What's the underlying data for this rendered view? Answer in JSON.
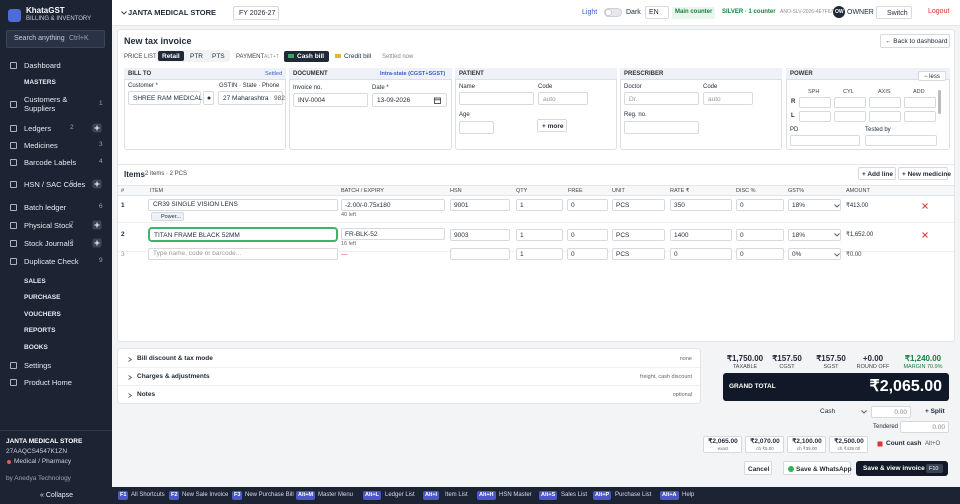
{
  "topbar": {
    "store": "JANTA MEDICAL STORE",
    "fy": "FY 2026-27",
    "light": "Light",
    "dark": "Dark",
    "lang": "EN",
    "counter": "Main counter",
    "plan": "SILVER · 1 counter",
    "license": "ANO-SLV-2026-4E7F67",
    "avatar": "OW",
    "role": "OWNER",
    "switch": "Switch",
    "logout": "Logout"
  },
  "sidebar": {
    "brand": "KhataGST",
    "tagline": "BILLING & INVENTORY",
    "search": "Search anything",
    "search_key": "Ctrl+K",
    "nav": [
      {
        "label": "Dashboard"
      },
      {
        "section": "MASTERS"
      },
      {
        "label": "Customers & Suppliers",
        "count": "1"
      },
      {
        "label": "Ledgers",
        "count": "2",
        "add": true
      },
      {
        "label": "Medicines",
        "count": "3"
      },
      {
        "label": "Barcode Labels",
        "count": "4"
      },
      {
        "label": "HSN / SAC Codes",
        "count": "5",
        "add": true
      },
      {
        "label": "Batch ledger",
        "count": "6"
      },
      {
        "label": "Physical Stock",
        "count": "7",
        "add": true
      },
      {
        "label": "Stock Journals",
        "count": "8",
        "add": true
      },
      {
        "label": "Duplicate Check",
        "count": "9"
      },
      {
        "section": "SALES"
      },
      {
        "section": "PURCHASE"
      },
      {
        "section": "VOUCHERS"
      },
      {
        "section": "REPORTS"
      },
      {
        "section": "BOOKS"
      },
      {
        "label": "Settings"
      },
      {
        "label": "Product Home"
      }
    ],
    "footer": {
      "store": "JANTA MEDICAL STORE",
      "gstin": "27AAQCS4547K1ZN",
      "business": "Medical / Pharmacy",
      "vendor": "by Anedya Technology",
      "collapse": "« Collapse"
    }
  },
  "invoice": {
    "title": "New tax invoice",
    "back": "← Back to dashboard",
    "price_list": "PRICE LIST",
    "price_options": [
      "Retail",
      "PTR",
      "PTS"
    ],
    "payment": "PAYMENT",
    "payment_key": "ALT+T",
    "cash_bill": "Cash bill",
    "credit_bill": "Credit bill",
    "settled": "Settled now",
    "bill_to": {
      "title": "BILL TO",
      "status": "Settled",
      "customer_label": "Customer *",
      "customer": "SHREE RAM MEDICAL",
      "gstin_label": "GSTIN · State · Phone",
      "state": "27 Maharashtra",
      "phone": "982"
    },
    "document": {
      "title": "DOCUMENT",
      "tax_mode": "Intra-state (CGST+SGST)",
      "invoice_label": "Invoice no.",
      "invoice_no": "INV-0004",
      "date_label": "Date *",
      "date": "13-09-2026"
    },
    "patient": {
      "title": "PATIENT",
      "name_label": "Name",
      "code_label": "Code",
      "code_placeholder": "auto",
      "age_label": "Age",
      "more": "+ more"
    },
    "prescriber": {
      "title": "PRESCRIBER",
      "doctor_label": "Doctor",
      "doctor_placeholder": "Dr.",
      "code_label": "Code",
      "code_placeholder": "auto",
      "reg_label": "Reg. no."
    },
    "power": {
      "title": "POWER",
      "toggle": "− less",
      "columns": [
        "SPH",
        "CYL",
        "AXIS",
        "ADD"
      ],
      "eyes": [
        "R",
        "L"
      ],
      "pd": "PD",
      "tested_by": "Tested by"
    }
  },
  "items": {
    "title": "Items",
    "summary": "2 items · 2 PCS",
    "add_line": "+ Add line",
    "new_medicine": "+ New medicine",
    "columns": [
      "#",
      "ITEM",
      "BATCH / EXPIRY",
      "HSN",
      "QTY",
      "FREE",
      "UNIT",
      "RATE ₹",
      "DISC %",
      "GST%",
      "AMOUNT"
    ],
    "rows": [
      {
        "no": "1",
        "item": "CR39 SINGLE VISION LENS",
        "item_sub": "Power...",
        "batch": "-2.00/-0.75x180",
        "stock": "40 left",
        "hsn": "9001",
        "qty": "1",
        "free": "0",
        "unit": "PCS",
        "rate": "350",
        "disc": "0",
        "gst": "18%",
        "amount": "₹413.00"
      },
      {
        "no": "2",
        "item": "TITAN FRAME BLACK 52MM",
        "batch": "FR-BLK-52",
        "stock": "16 left",
        "hsn": "9003",
        "qty": "1",
        "free": "0",
        "unit": "PCS",
        "rate": "1400",
        "disc": "0",
        "gst": "18%",
        "amount": "₹1,652.00"
      },
      {
        "no": "3",
        "item": "Type name, code or barcode...",
        "batch": "—",
        "qty": "1",
        "free": "0",
        "unit": "PCS",
        "rate": "0",
        "disc": "0",
        "gst": "0%",
        "amount": "₹0.00"
      }
    ]
  },
  "adjustments": [
    {
      "label": "Bill discount & tax mode",
      "hint": "none"
    },
    {
      "label": "Charges & adjustments",
      "hint": "freight, cash discount"
    },
    {
      "label": "Notes",
      "hint": "optional"
    }
  ],
  "totals": {
    "figures": [
      {
        "value": "₹1,750.00",
        "label": "TAXABLE"
      },
      {
        "value": "₹157.50",
        "label": "CGST"
      },
      {
        "value": "₹157.50",
        "label": "SGST"
      },
      {
        "value": "+0.00",
        "label": "ROUND OFF"
      },
      {
        "value": "₹1,240.00",
        "label": "MARGIN 70.9%"
      }
    ],
    "grand_label": "GRAND TOTAL",
    "grand": "₹2,065.00",
    "mode": "Cash",
    "amount": "0.00",
    "split": "+ Split",
    "tendered_label": "Tendered",
    "tendered": "0.00",
    "quick": [
      {
        "amount": "₹2,065.00",
        "note": "exact"
      },
      {
        "amount": "₹2,070.00",
        "note": "ch ₹5.00"
      },
      {
        "amount": "₹2,100.00",
        "note": "ch ₹35.00"
      },
      {
        "amount": "₹2,500.00",
        "note": "ch ₹435.00"
      }
    ],
    "count_cash": "Count cash",
    "count_key": "Alt+O",
    "cancel": "Cancel",
    "whatsapp": "Save & WhatsApp",
    "save": "Save & view invoice",
    "save_key": "F10"
  },
  "shortcuts": [
    {
      "key": "F1",
      "label": "All Shortcuts"
    },
    {
      "key": "F2",
      "label": "New Sale Invoice"
    },
    {
      "key": "F3",
      "label": "New Purchase Bill"
    },
    {
      "key": "Alt+M",
      "label": "Master Menu"
    },
    {
      "key": "Alt+L",
      "label": "Ledger List"
    },
    {
      "key": "Alt+I",
      "label": "Item List"
    },
    {
      "key": "Alt+H",
      "label": "HSN Master"
    },
    {
      "key": "Alt+S",
      "label": "Sales List"
    },
    {
      "key": "Alt+P",
      "label": "Purchase List"
    },
    {
      "key": "Alt+A",
      "label": "Help"
    }
  ]
}
